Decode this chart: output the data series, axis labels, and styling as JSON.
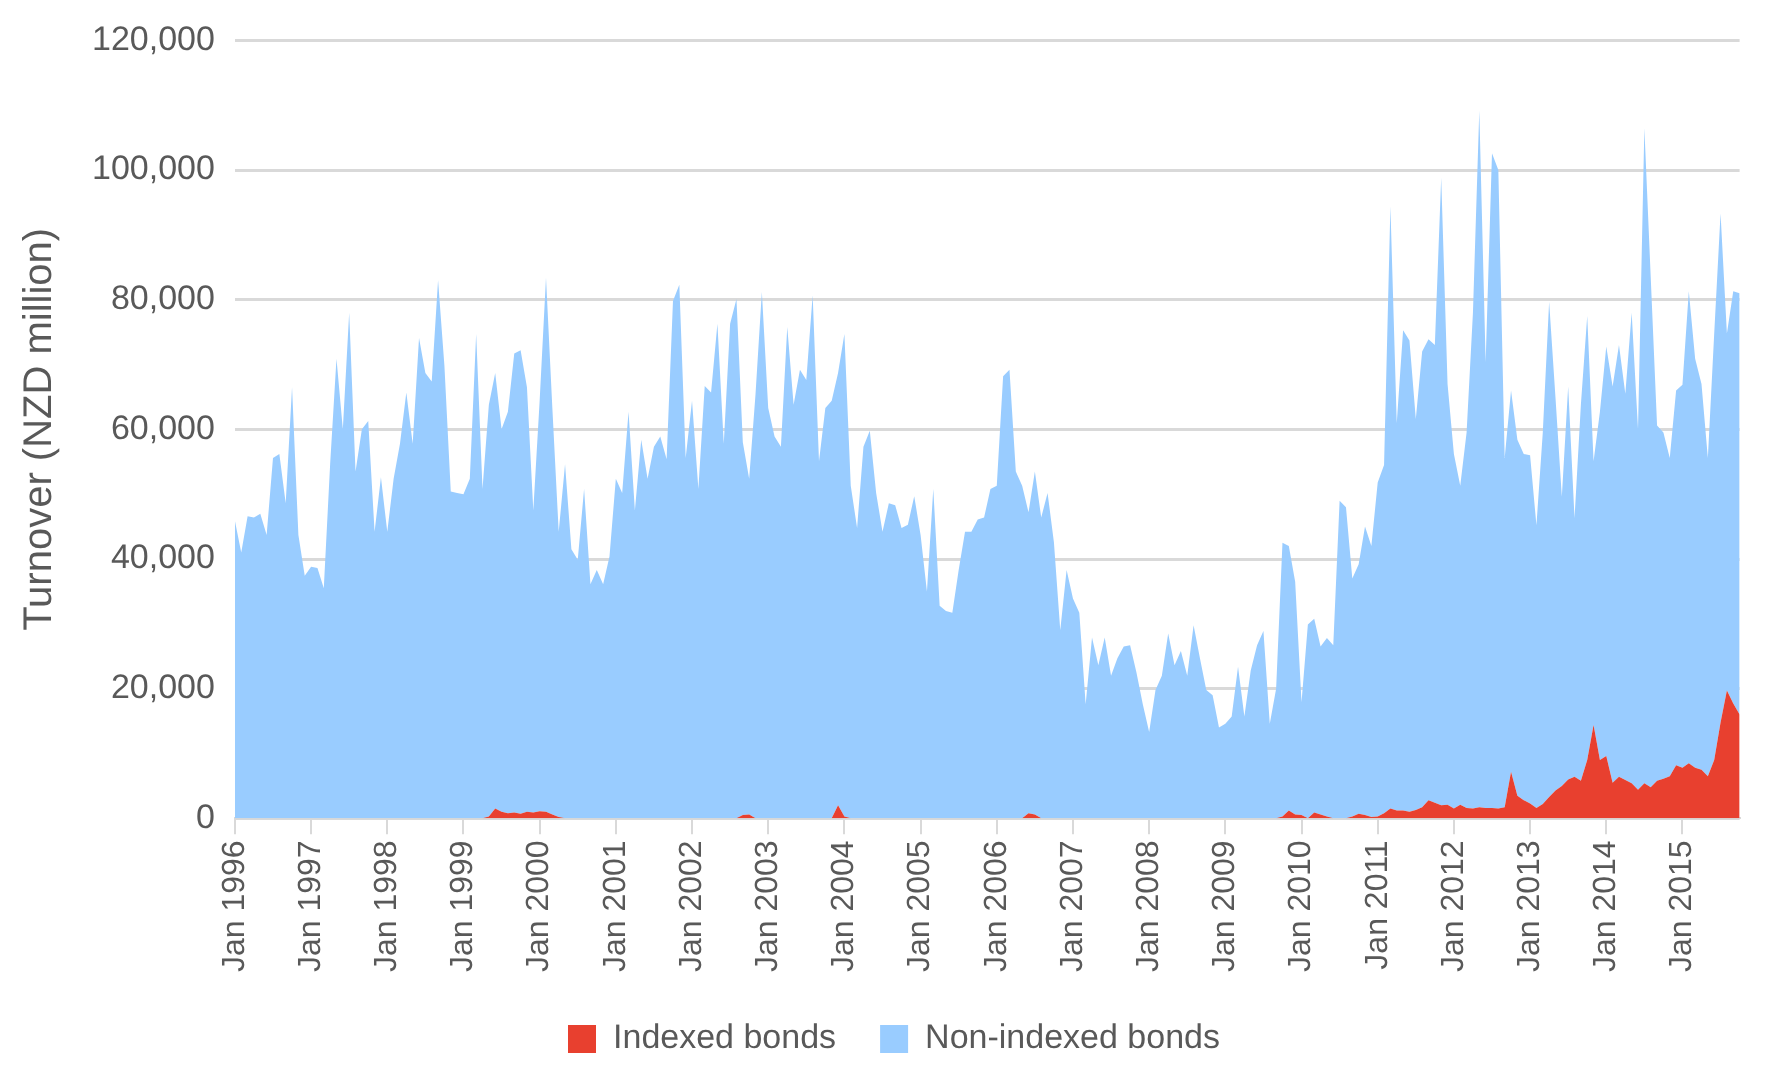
{
  "chart_data": {
    "type": "area",
    "stacked": true,
    "ylabel": "Turnover (NZD million)",
    "categories": [
      "Jan 1996",
      null,
      null,
      null,
      null,
      null,
      null,
      null,
      null,
      null,
      null,
      null,
      "Jan 1997",
      null,
      null,
      null,
      null,
      null,
      null,
      null,
      null,
      null,
      null,
      null,
      "Jan 1998",
      null,
      null,
      null,
      null,
      null,
      null,
      null,
      null,
      null,
      null,
      null,
      "Jan 1999",
      null,
      null,
      null,
      null,
      null,
      null,
      null,
      null,
      null,
      null,
      null,
      "Jan 2000",
      null,
      null,
      null,
      null,
      null,
      null,
      null,
      null,
      null,
      null,
      null,
      "Jan 2001",
      null,
      null,
      null,
      null,
      null,
      null,
      null,
      null,
      null,
      null,
      null,
      "Jan 2002",
      null,
      null,
      null,
      null,
      null,
      null,
      null,
      null,
      null,
      null,
      null,
      "Jan 2003",
      null,
      null,
      null,
      null,
      null,
      null,
      null,
      null,
      null,
      null,
      null,
      "Jan 2004",
      null,
      null,
      null,
      null,
      null,
      null,
      null,
      null,
      null,
      null,
      null,
      "Jan 2005",
      null,
      null,
      null,
      null,
      null,
      null,
      null,
      null,
      null,
      null,
      null,
      "Jan 2006",
      null,
      null,
      null,
      null,
      null,
      null,
      null,
      null,
      null,
      null,
      null,
      "Jan 2007",
      null,
      null,
      null,
      null,
      null,
      null,
      null,
      null,
      null,
      null,
      null,
      "Jan 2008",
      null,
      null,
      null,
      null,
      null,
      null,
      null,
      null,
      null,
      null,
      null,
      "Jan 2009",
      null,
      null,
      null,
      null,
      null,
      null,
      null,
      null,
      null,
      null,
      null,
      "Jan 2010",
      null,
      null,
      null,
      null,
      null,
      null,
      null,
      null,
      null,
      null,
      null,
      "Jan 2011",
      null,
      null,
      null,
      null,
      null,
      null,
      null,
      null,
      null,
      null,
      null,
      "Jan 2012",
      null,
      null,
      null,
      null,
      null,
      null,
      null,
      null,
      null,
      null,
      null,
      "Jan 2013",
      null,
      null,
      null,
      null,
      null,
      null,
      null,
      null,
      null,
      null,
      null,
      "Jan 2014",
      null,
      null,
      null,
      null,
      null,
      null,
      null,
      null,
      null,
      null,
      null,
      "Jan 2015",
      null,
      null,
      null,
      null,
      null,
      null,
      null,
      null,
      null
    ],
    "series": [
      {
        "name": "Indexed bonds",
        "color": "#e8402f",
        "values": [
          0,
          0,
          0,
          0,
          0,
          0,
          0,
          0,
          0,
          0,
          0,
          0,
          0,
          0,
          0,
          0,
          0,
          0,
          0,
          0,
          0,
          0,
          0,
          0,
          0,
          0,
          0,
          0,
          0,
          0,
          0,
          0,
          0,
          0,
          0,
          0,
          0,
          0,
          0,
          0,
          300,
          1500,
          1000,
          800,
          900,
          700,
          1000,
          900,
          1100,
          1000,
          600,
          200,
          0,
          0,
          0,
          0,
          0,
          0,
          0,
          0,
          0,
          0,
          0,
          0,
          0,
          0,
          0,
          0,
          0,
          0,
          0,
          0,
          0,
          0,
          0,
          0,
          0,
          0,
          0,
          0,
          500,
          600,
          0,
          0,
          0,
          0,
          0,
          0,
          0,
          0,
          0,
          0,
          0,
          0,
          0,
          2000,
          300,
          0,
          0,
          0,
          0,
          0,
          0,
          0,
          0,
          0,
          0,
          0,
          0,
          0,
          0,
          0,
          0,
          0,
          0,
          0,
          0,
          0,
          0,
          0,
          0,
          0,
          0,
          0,
          0,
          800,
          600,
          0,
          0,
          0,
          0,
          0,
          0,
          0,
          0,
          0,
          0,
          0,
          0,
          0,
          0,
          0,
          0,
          0,
          0,
          0,
          0,
          0,
          0,
          0,
          0,
          0,
          0,
          0,
          0,
          0,
          0,
          0,
          0,
          0,
          0,
          0,
          0,
          0,
          0,
          300,
          1200,
          600,
          500,
          0,
          900,
          600,
          300,
          0,
          0,
          0,
          300,
          700,
          500,
          200,
          300,
          800,
          1500,
          1200,
          1200,
          1000,
          1300,
          1700,
          2800,
          2400,
          2000,
          2100,
          1500,
          2100,
          1600,
          1500,
          1700,
          1600,
          1600,
          1500,
          1700,
          7200,
          3500,
          2800,
          2300,
          1600,
          2200,
          3300,
          4300,
          5000,
          6000,
          6400,
          5800,
          9000,
          14400,
          9000,
          9600,
          5500,
          6400,
          5900,
          5400,
          4400,
          5400,
          4800,
          5800,
          6100,
          6500,
          8200,
          7800,
          8500,
          7800,
          7500,
          6500,
          9000,
          14800,
          19700,
          17700,
          16000
        ]
      },
      {
        "name": "Non-indexed bonds",
        "color": "#99ccff",
        "values": [
          45900,
          41000,
          46600,
          46400,
          47000,
          43700,
          55600,
          56200,
          48600,
          66500,
          43700,
          37400,
          38800,
          38600,
          35500,
          54600,
          70900,
          60000,
          78000,
          53500,
          60000,
          61300,
          44200,
          52600,
          44200,
          52400,
          57800,
          65700,
          57800,
          74100,
          68700,
          67400,
          83000,
          69800,
          50400,
          50200,
          50000,
          52400,
          74700,
          50800,
          63500,
          67200,
          59000,
          61900,
          70800,
          71500,
          65500,
          46600,
          63300,
          82400,
          62700,
          44000,
          54600,
          41500,
          39900,
          50800,
          36100,
          38300,
          36100,
          40400,
          52400,
          50200,
          62700,
          47500,
          58400,
          52400,
          57300,
          58900,
          55400,
          79800,
          82300,
          55600,
          64400,
          50800,
          66700,
          65700,
          76300,
          57800,
          76300,
          80100,
          57500,
          51800,
          65400,
          81200,
          63300,
          58900,
          57300,
          75800,
          63800,
          69200,
          67600,
          80700,
          55100,
          63300,
          64400,
          66700,
          74400,
          51300,
          44800,
          57300,
          59800,
          50200,
          44200,
          48600,
          48300,
          44800,
          45300,
          49700,
          43700,
          35000,
          50800,
          32800,
          32000,
          31700,
          38300,
          44200,
          44200,
          46100,
          46400,
          50800,
          51300,
          68200,
          69200,
          53500,
          51300,
          46400,
          52900,
          46400,
          50200,
          42600,
          29000,
          38300,
          33900,
          31700,
          17600,
          27900,
          23600,
          27900,
          22000,
          24700,
          26500,
          26700,
          22500,
          17600,
          13300,
          19800,
          22000,
          28500,
          23600,
          25800,
          22000,
          29800,
          24700,
          19800,
          19000,
          14000,
          14600,
          15700,
          23400,
          15700,
          22800,
          26700,
          28900,
          14600,
          20000,
          42200,
          40800,
          35900,
          17400,
          29900,
          29900,
          25900,
          27500,
          26700,
          49000,
          48000,
          36700,
          38500,
          44500,
          41800,
          51500,
          53700,
          92900,
          59800,
          74100,
          72700,
          60300,
          70300,
          71100,
          70600,
          96800,
          64900,
          54700,
          49200,
          57900,
          76500,
          107500,
          68800,
          101000,
          98500,
          53900,
          58800,
          54900,
          53400,
          53700,
          43600,
          57300,
          76400,
          60600,
          44600,
          60600,
          39900,
          58000,
          68500,
          40700,
          53700,
          63200,
          61100,
          66600,
          59600,
          72600,
          55600,
          101100,
          78700,
          54800,
          53400,
          49100,
          57800,
          59100,
          72800,
          63100,
          59500,
          49100,
          65800,
          78500,
          55100,
          63600,
          65000
        ]
      }
    ],
    "ylim": [
      0,
      120000
    ],
    "yticks": [
      {
        "value": 0,
        "label": "0"
      },
      {
        "value": 20000,
        "label": "20,000"
      },
      {
        "value": 40000,
        "label": "40,000"
      },
      {
        "value": 60000,
        "label": "60,000"
      },
      {
        "value": 80000,
        "label": "80,000"
      },
      {
        "value": 100000,
        "label": "100,000"
      },
      {
        "value": 120000,
        "label": "120,000"
      }
    ],
    "grid": "y",
    "legend": "bottom"
  }
}
